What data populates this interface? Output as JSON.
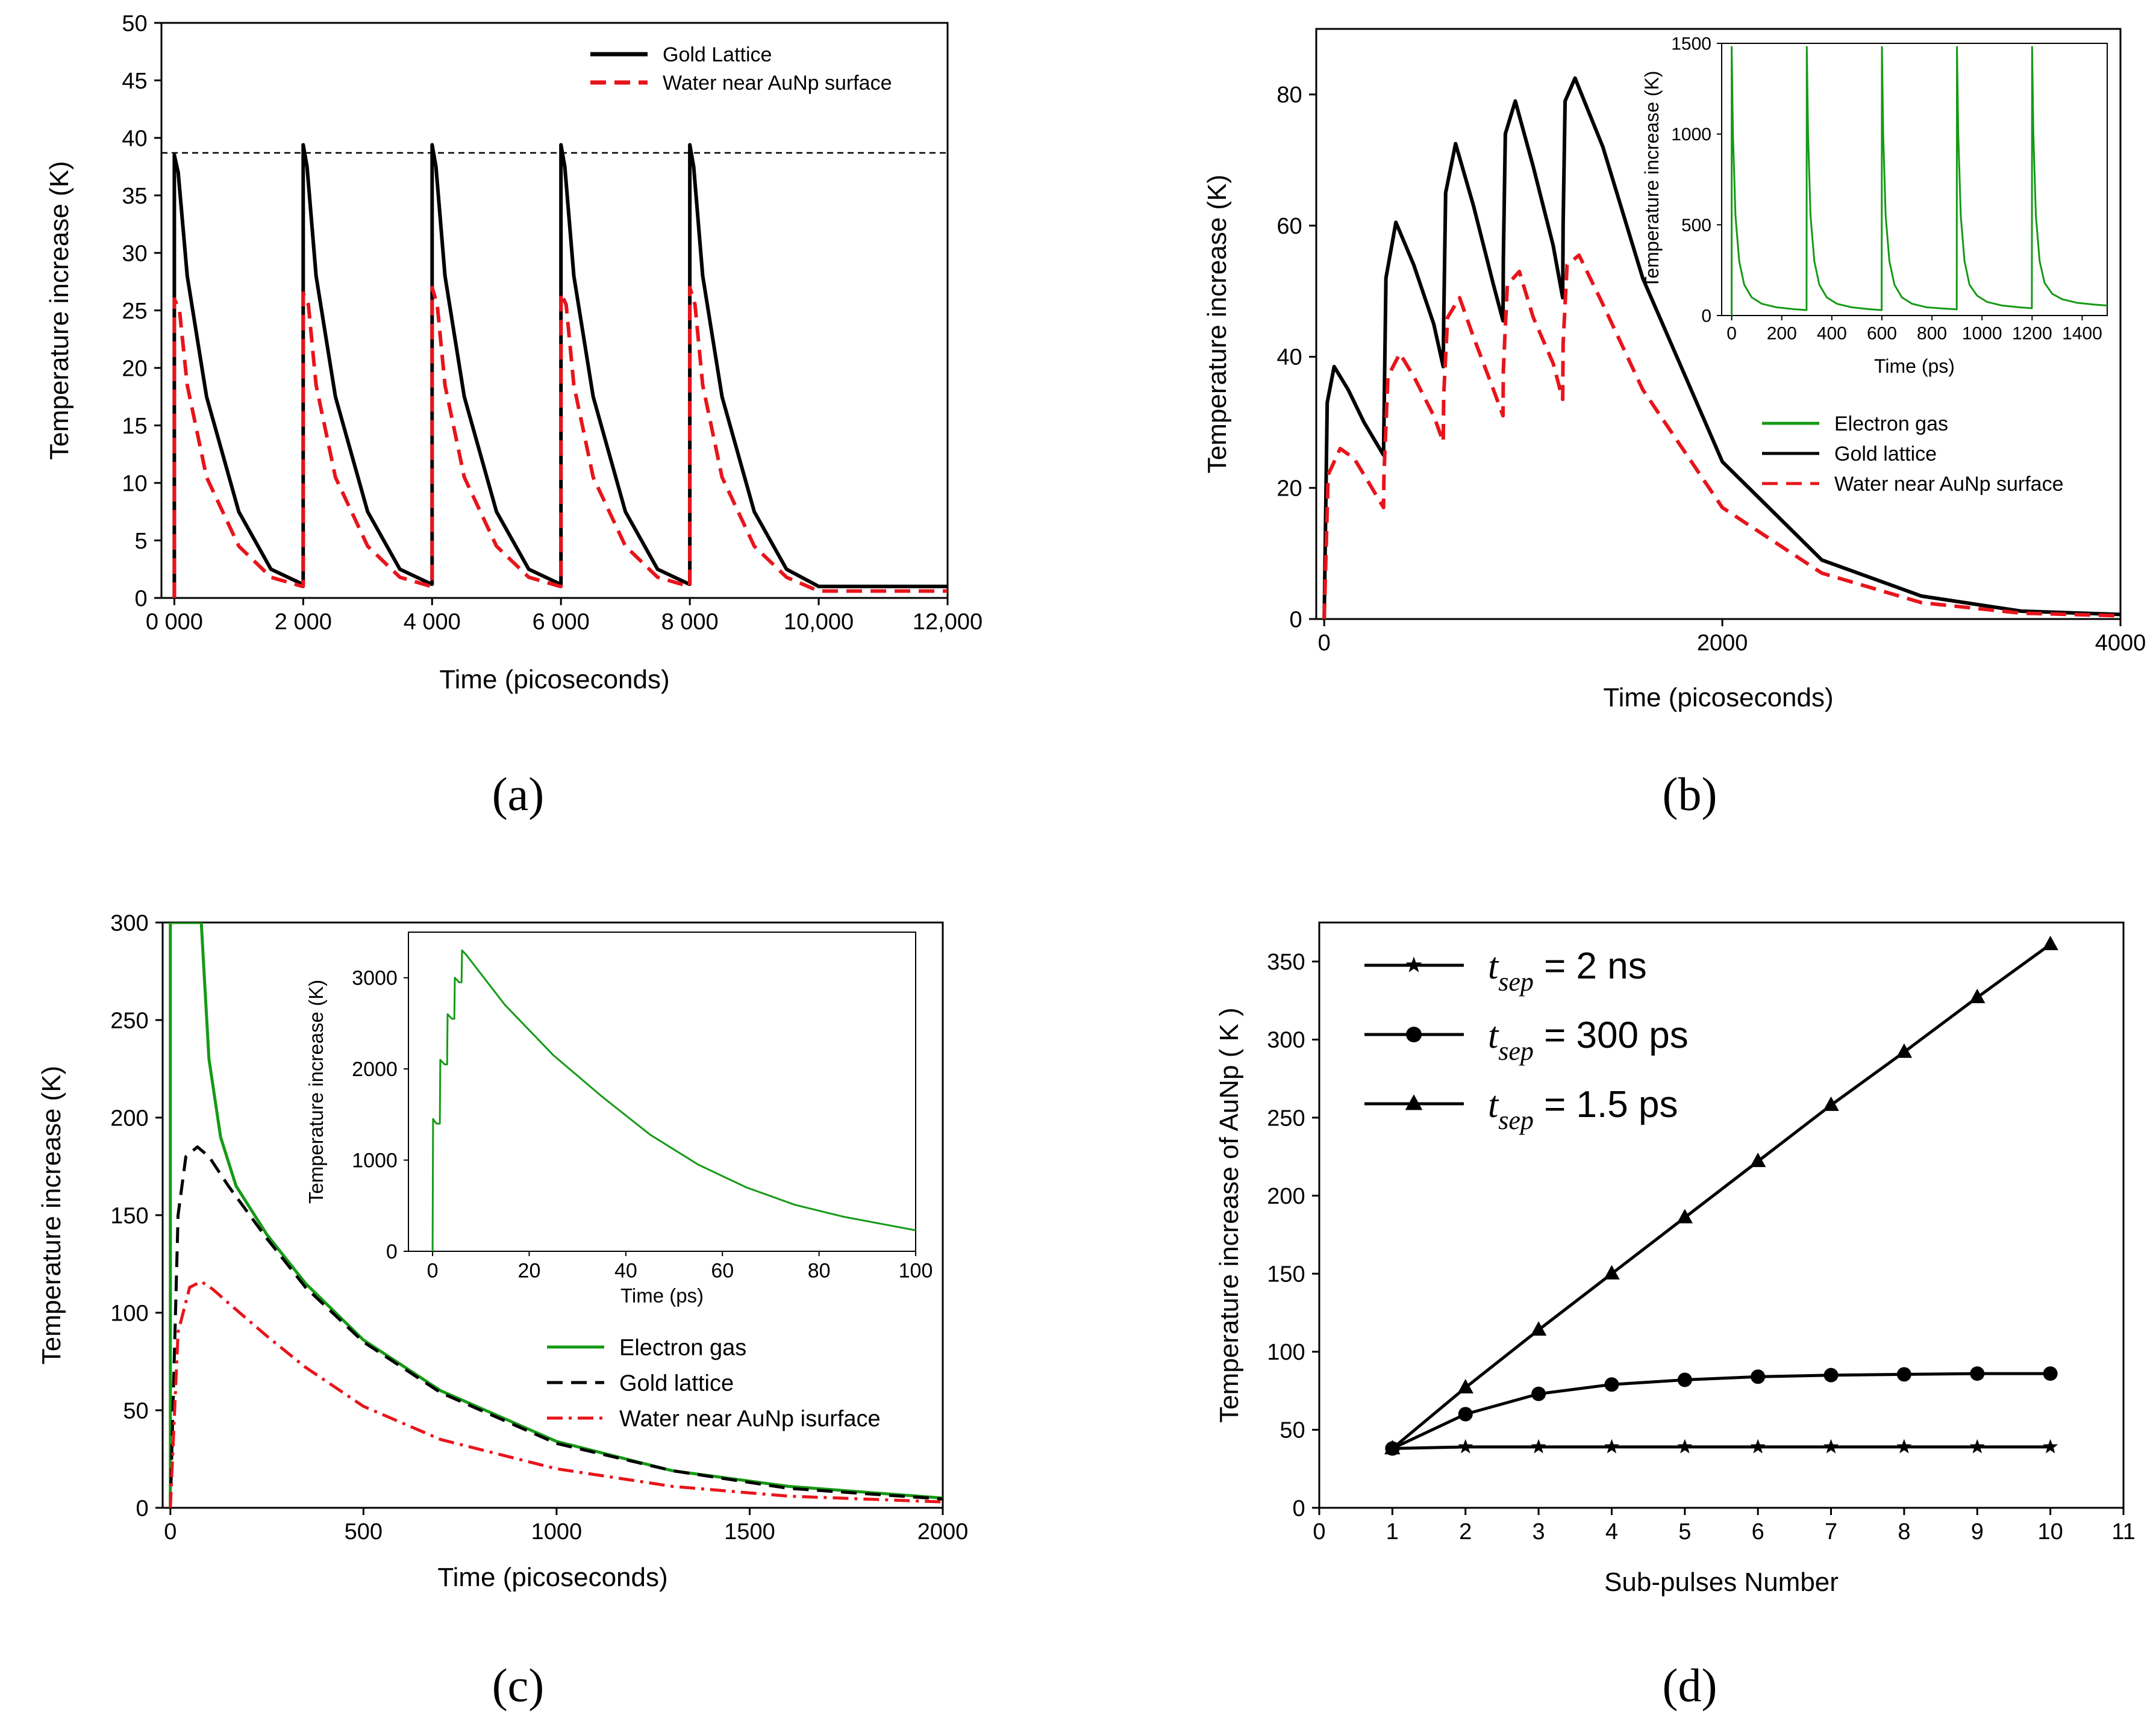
{
  "panel_labels": {
    "a": "(a)",
    "b": "(b)",
    "c": "(c)",
    "d": "(d)"
  },
  "chart_data": [
    {
      "panel": "a",
      "type": "line",
      "xlabel": "Time (picoseconds)",
      "ylabel": "Temperature increase (K)",
      "xlim": [
        -200,
        12000
      ],
      "ylim": [
        0,
        50
      ],
      "x_tick_labels": [
        "0 000",
        "2 000",
        "4 000",
        "6 000",
        "8 000",
        "10,000",
        "12,000"
      ],
      "y_tick_labels": [
        "0",
        "5",
        "10",
        "15",
        "20",
        "25",
        "30",
        "35",
        "40",
        "45",
        "50"
      ],
      "reference_line_y": 38.7,
      "legend_position": "top-right",
      "series": [
        {
          "name": "Gold Lattice",
          "color": "#000000",
          "style": "solid",
          "x": [
            0,
            0,
            60,
            200,
            500,
            1000,
            1500,
            1990,
            2000,
            2000,
            2060,
            2200,
            2500,
            3000,
            3500,
            3990,
            4000,
            4000,
            4060,
            4200,
            4500,
            5000,
            5500,
            5990,
            6000,
            6000,
            6060,
            6200,
            6500,
            7000,
            7500,
            7990,
            8000,
            8000,
            8060,
            8200,
            8500,
            9000,
            9500,
            10000,
            12000
          ],
          "y": [
            0,
            38.5,
            37,
            28,
            17.5,
            7.5,
            2.5,
            1.2,
            1.2,
            39.4,
            37.5,
            28,
            17.5,
            7.5,
            2.5,
            1.2,
            1.2,
            39.4,
            37.5,
            28,
            17.5,
            7.5,
            2.5,
            1.2,
            1.2,
            39.4,
            37.5,
            28,
            17.5,
            7.5,
            2.5,
            1.2,
            1.2,
            39.4,
            37.5,
            28,
            17.5,
            7.5,
            2.5,
            1.0,
            1.0
          ]
        },
        {
          "name": "Water near AuNp surface",
          "color": "#e8141b",
          "style": "dashed",
          "x": [
            0,
            0,
            80,
            200,
            500,
            1000,
            1500,
            1990,
            2000,
            2000,
            2080,
            2200,
            2500,
            3000,
            3500,
            3990,
            4000,
            4000,
            4080,
            4200,
            4500,
            5000,
            5500,
            5990,
            6000,
            6000,
            6080,
            6200,
            6500,
            7000,
            7500,
            7990,
            8000,
            8000,
            8080,
            8200,
            8500,
            9000,
            9500,
            10000,
            12000
          ],
          "y": [
            0,
            26,
            25,
            18.5,
            10.5,
            4.5,
            1.8,
            1.0,
            1.0,
            26.5,
            25.5,
            18.5,
            10.5,
            4.5,
            1.8,
            1.0,
            1.0,
            27,
            25.5,
            18.5,
            10.5,
            4.5,
            1.8,
            1.0,
            1.0,
            26.5,
            25.5,
            18.5,
            10.5,
            4.5,
            1.8,
            1.0,
            1.0,
            27,
            25.5,
            18.5,
            10.5,
            4.5,
            1.8,
            0.6,
            0.6
          ]
        }
      ]
    },
    {
      "panel": "b",
      "type": "line",
      "xlabel": "Time (picoseconds)",
      "ylabel": "Temperature increase (K)",
      "xlim": [
        -40,
        4000
      ],
      "ylim": [
        0,
        90
      ],
      "x_tick_labels": [
        "0",
        "2000",
        "4000"
      ],
      "y_tick_labels": [
        "0",
        "20",
        "40",
        "60",
        "80"
      ],
      "legend_position": "bottom-right",
      "series": [
        {
          "name": "Electron gas",
          "color": "#159a15",
          "style": "solid",
          "x": [],
          "y": []
        },
        {
          "name": "Gold lattice",
          "color": "#000000",
          "style": "solid",
          "x": [
            0,
            15,
            50,
            120,
            200,
            298,
            300,
            310,
            360,
            450,
            550,
            598,
            600,
            610,
            660,
            750,
            850,
            898,
            900,
            910,
            960,
            1050,
            1150,
            1198,
            1200,
            1210,
            1260,
            1400,
            1600,
            2000,
            2500,
            3000,
            3500,
            4000
          ],
          "y": [
            0,
            33,
            38.5,
            35,
            30,
            25,
            30,
            52,
            60.5,
            54,
            45,
            38.5,
            45,
            65,
            72.5,
            63,
            51,
            45.5,
            55,
            74,
            79,
            69,
            57,
            49,
            60,
            79,
            82.5,
            72,
            52,
            24,
            9,
            3.5,
            1.2,
            0.7
          ]
        },
        {
          "name": "Water near AuNp surface",
          "color": "#e8141b",
          "style": "dashed",
          "x": [
            0,
            20,
            80,
            150,
            220,
            298,
            300,
            320,
            380,
            450,
            550,
            598,
            600,
            620,
            680,
            750,
            850,
            898,
            900,
            920,
            980,
            1050,
            1150,
            1198,
            1200,
            1220,
            1280,
            1400,
            1600,
            2000,
            2500,
            3000,
            3500,
            4000
          ],
          "y": [
            0,
            22,
            26,
            24.5,
            21,
            17,
            22,
            37,
            40.5,
            37,
            31,
            27,
            34,
            46,
            49,
            43,
            35,
            31,
            38,
            51,
            53,
            46,
            39,
            33.5,
            42,
            54,
            55.5,
            48,
            35,
            17,
            7,
            2.5,
            0.9,
            0.5
          ]
        }
      ],
      "inset": {
        "xlabel": "Time (ps)",
        "ylabel": "Temperature increase (K)",
        "xlim": [
          -40,
          1500
        ],
        "ylim": [
          0,
          1500
        ],
        "x_tick_labels": [
          "0",
          "200",
          "400",
          "600",
          "800",
          "1000",
          "1200",
          "1400"
        ],
        "y_tick_labels": [
          "0",
          "500",
          "1000",
          "1500"
        ],
        "series": [
          {
            "name": "Electron gas",
            "color": "#159a15",
            "x": [
              0,
              0,
              5,
              15,
              30,
              50,
              80,
              120,
              180,
              250,
              299,
              300,
              305,
              315,
              330,
              350,
              380,
              420,
              480,
              550,
              599,
              600,
              605,
              615,
              630,
              650,
              680,
              720,
              780,
              850,
              899,
              900,
              905,
              915,
              930,
              950,
              980,
              1020,
              1080,
              1150,
              1199,
              1200,
              1205,
              1215,
              1230,
              1250,
              1280,
              1320,
              1380,
              1450,
              1500
            ],
            "y": [
              0,
              1480,
              1000,
              550,
              300,
              170,
              100,
              65,
              45,
              35,
              30,
              1480,
              1000,
              550,
              300,
              170,
              100,
              65,
              45,
              35,
              30,
              1480,
              1000,
              550,
              300,
              170,
              100,
              65,
              45,
              38,
              34,
              1480,
              1000,
              550,
              300,
              170,
              110,
              75,
              55,
              45,
              40,
              1480,
              1000,
              550,
              300,
              180,
              120,
              90,
              70,
              60,
              55
            ]
          }
        ]
      }
    },
    {
      "panel": "c",
      "type": "line",
      "xlabel": "Time (picoseconds)",
      "ylabel": "Temperature increase (K)",
      "xlim": [
        -20,
        2000
      ],
      "ylim": [
        0,
        300
      ],
      "x_tick_labels": [
        "0",
        "500",
        "1000",
        "1500",
        "2000"
      ],
      "y_tick_labels": [
        "0",
        "50",
        "100",
        "150",
        "200",
        "250",
        "300"
      ],
      "legend_position": "bottom-right",
      "series": [
        {
          "name": "Electron gas",
          "color": "#159a15",
          "style": "solid",
          "x": [
            0,
            0,
            80,
            100,
            130,
            170,
            250,
            350,
            500,
            700,
            1000,
            1300,
            1600,
            2000
          ],
          "y": [
            0,
            300,
            300,
            230,
            190,
            165,
            140,
            115,
            86,
            60,
            34,
            19,
            11,
            5
          ]
        },
        {
          "name": "Gold lattice",
          "color": "#000000",
          "style": "dashed",
          "x": [
            0,
            20,
            40,
            70,
            100,
            150,
            250,
            350,
            500,
            700,
            1000,
            1300,
            1600,
            2000
          ],
          "y": [
            0,
            150,
            180,
            185,
            180,
            165,
            138,
            113,
            85,
            59,
            33,
            19,
            10,
            4.5
          ]
        },
        {
          "name": "Water near AuNp isurface",
          "color": "#e8141b",
          "style": "dashdot",
          "x": [
            0,
            20,
            50,
            80,
            110,
            150,
            250,
            350,
            500,
            700,
            1000,
            1300,
            1600,
            2000
          ],
          "y": [
            0,
            90,
            113,
            116,
            112,
            105,
            88,
            72,
            52,
            35,
            20,
            11,
            6,
            3
          ]
        }
      ],
      "inset": {
        "xlabel": "Time (ps)",
        "ylabel": "Temperature increase (K)",
        "xlim": [
          -5,
          100
        ],
        "ylim": [
          0,
          3500
        ],
        "x_tick_labels": [
          "0",
          "20",
          "40",
          "60",
          "80",
          "100"
        ],
        "y_tick_labels": [
          "0",
          "1000",
          "2000",
          "3000"
        ],
        "series": [
          {
            "name": "Electron gas",
            "color": "#159a15",
            "x": [
              0,
              0.1,
              0.8,
              1.5,
              1.6,
              2.5,
              3,
              3.1,
              4,
              4.5,
              4.6,
              5.5,
              6,
              6.1,
              7,
              15,
              25,
              35,
              45,
              55,
              65,
              75,
              85,
              100
            ],
            "y": [
              0,
              1450,
              1400,
              1400,
              2100,
              2050,
              2050,
              2600,
              2550,
              2550,
              3000,
              2950,
              2950,
              3300,
              3250,
              2700,
              2150,
              1700,
              1280,
              950,
              700,
              510,
              380,
              230
            ]
          }
        ]
      }
    },
    {
      "panel": "d",
      "type": "line",
      "xlabel": "Sub-pulses Number",
      "ylabel": "Temperature increase of AuNp ( K )",
      "xlim": [
        0,
        11
      ],
      "ylim": [
        0,
        375
      ],
      "x_tick_labels": [
        "0",
        "1",
        "2",
        "3",
        "4",
        "5",
        "6",
        "7",
        "8",
        "9",
        "10",
        "11"
      ],
      "y_tick_labels": [
        "0",
        "50",
        "100",
        "150",
        "200",
        "250",
        "300",
        "350"
      ],
      "legend_position": "top-left",
      "legend_symbol": "t",
      "series": [
        {
          "name": "t_sep = 2 ns",
          "subscript": "sep",
          "rest": " = 2 ns",
          "marker": "star",
          "color": "#000000",
          "x": [
            1,
            2,
            3,
            4,
            5,
            6,
            7,
            8,
            9,
            10
          ],
          "y": [
            38,
            39,
            39,
            39,
            39,
            39,
            39,
            39,
            39,
            39
          ]
        },
        {
          "name": "t_sep = 300 ps",
          "subscript": "sep",
          "rest": " = 300 ps",
          "marker": "circle",
          "color": "#000000",
          "x": [
            1,
            2,
            3,
            4,
            5,
            6,
            7,
            8,
            9,
            10
          ],
          "y": [
            38,
            60,
            73,
            79,
            82,
            84,
            85,
            85.5,
            86,
            86
          ]
        },
        {
          "name": "t_sep = 1.5 ps",
          "subscript": "sep",
          "rest": " = 1.5 ps",
          "marker": "triangle",
          "color": "#000000",
          "x": [
            1,
            2,
            3,
            4,
            5,
            6,
            7,
            8,
            9,
            10
          ],
          "y": [
            38,
            77,
            114,
            150,
            186,
            222,
            258,
            292,
            327,
            361
          ]
        }
      ]
    }
  ]
}
